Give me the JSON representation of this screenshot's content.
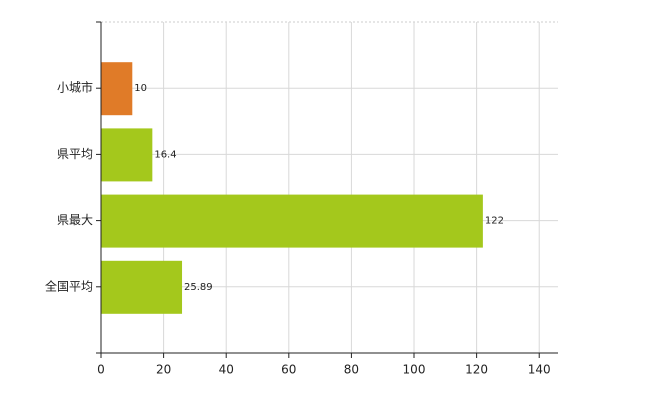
{
  "chart_data": {
    "type": "bar",
    "orientation": "horizontal",
    "categories": [
      "小城市",
      "県平均",
      "県最大",
      "全国平均"
    ],
    "values": [
      10,
      16.4,
      122,
      25.89
    ],
    "colors": [
      "#e07b28",
      "#a4c81c",
      "#a4c81c",
      "#a4c81c"
    ],
    "xlim": [
      0,
      146
    ],
    "xticks": [
      0,
      20,
      40,
      60,
      80,
      100,
      120,
      140
    ],
    "grid": true
  }
}
